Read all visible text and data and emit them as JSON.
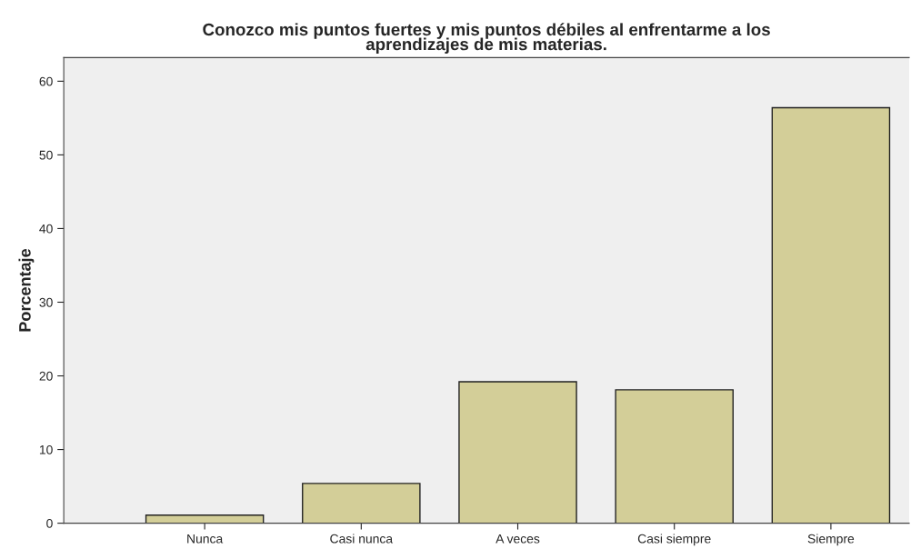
{
  "chart_data": {
    "type": "bar",
    "title": "Conozco mis puntos fuertes y mis puntos débiles al enfrentarme a los\naprendizajes de mis materias.",
    "ylabel": "Porcentaje",
    "categories": [
      "Nunca",
      "Casi nunca",
      "A veces",
      "Casi siempre",
      "Siempre"
    ],
    "values": [
      1.1,
      5.4,
      19.2,
      18.1,
      56.4
    ],
    "color": "#d3ce98",
    "ylim": [
      0,
      63.2
    ],
    "yticks": [
      0,
      10,
      20,
      30,
      40,
      50,
      60
    ],
    "grid": false
  }
}
